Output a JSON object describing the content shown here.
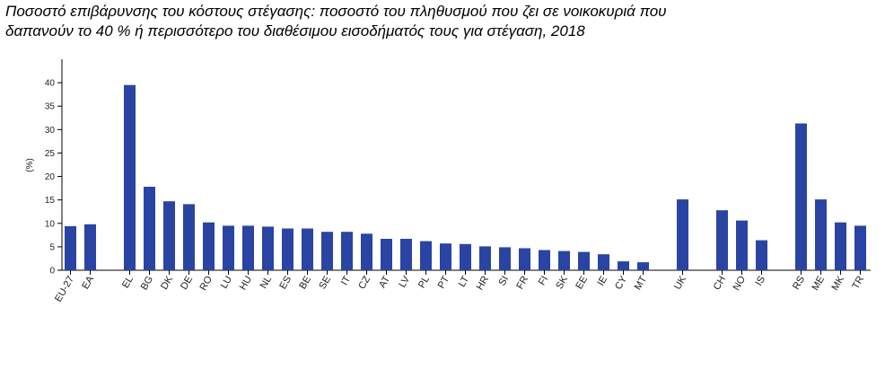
{
  "chart_data": {
    "type": "bar",
    "title_line1": "Ποσοστό επιβάρυνσης του κόστους στέγασης: ποσοστό του πληθυσμού που ζει σε νοικοκυριά που",
    "title_line2": "δαπανούν το 40 % ή περισσότερο του διαθέσιμου εισοδήματός τους για στέγαση, 2018",
    "ylabel": "(%)",
    "xlabel": "",
    "ylim": [
      0,
      45
    ],
    "yticks": [
      0,
      5,
      10,
      15,
      20,
      25,
      30,
      35,
      40
    ],
    "grid": false,
    "bar_color": "#2a44a4",
    "groups": [
      {
        "categories": [
          "EU-27",
          "EA"
        ],
        "values": [
          9.4,
          9.8
        ]
      },
      {
        "categories": [
          "EL",
          "BG",
          "DK",
          "DE",
          "RO",
          "LU",
          "HU",
          "NL",
          "ES",
          "BE",
          "SE",
          "IT",
          "CZ",
          "AT",
          "LV",
          "PL",
          "PT",
          "LT",
          "HR",
          "SI",
          "FR",
          "FI",
          "SK",
          "EE",
          "IE",
          "CY",
          "MT"
        ],
        "values": [
          39.5,
          17.8,
          14.7,
          14.1,
          10.2,
          9.5,
          9.5,
          9.3,
          8.9,
          8.9,
          8.2,
          8.2,
          7.8,
          6.7,
          6.7,
          6.2,
          5.7,
          5.6,
          5.1,
          4.9,
          4.7,
          4.3,
          4.1,
          3.9,
          3.4,
          1.9,
          1.7
        ]
      },
      {
        "categories": [
          "UK"
        ],
        "values": [
          15.1
        ]
      },
      {
        "categories": [
          "CH",
          "NO",
          "IS"
        ],
        "values": [
          12.8,
          10.6,
          6.4
        ]
      },
      {
        "categories": [
          "RS",
          "ME",
          "MK",
          "TR"
        ],
        "values": [
          31.3,
          15.1,
          10.2,
          9.5
        ]
      }
    ]
  }
}
